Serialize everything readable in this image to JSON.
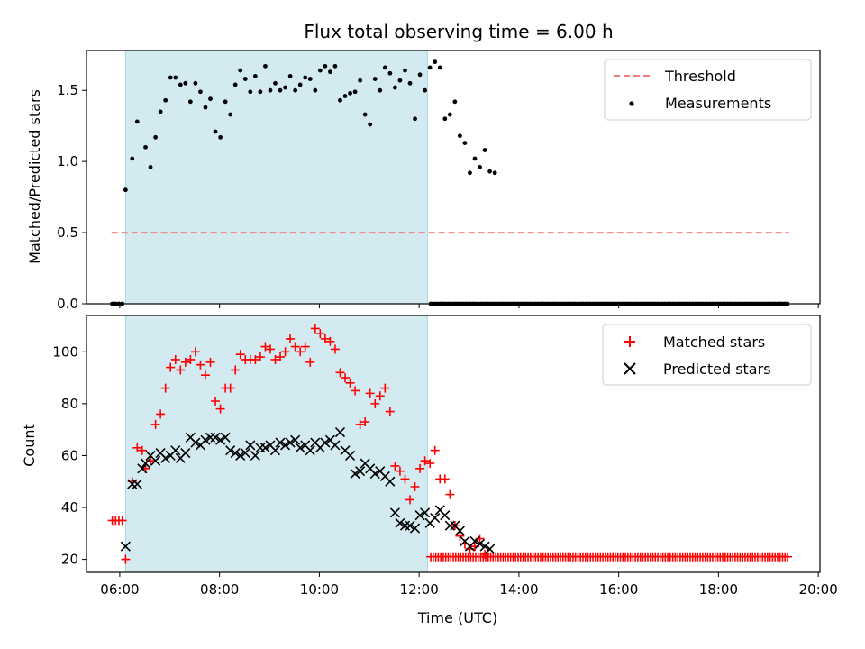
{
  "chart_data": [
    {
      "type": "scatter",
      "title": "Flux total observing time = 6.00 h",
      "xlabel": "",
      "ylabel": "Matched/Predicted stars",
      "ylim": [
        0,
        1.78
      ],
      "xlim": [
        "05:20",
        "20:02"
      ],
      "yticks": [
        0.0,
        0.5,
        1.0,
        1.5
      ],
      "ytick_labels": [
        "0.0",
        "0.5",
        "1.0",
        "1.5"
      ],
      "shaded_span": [
        "06:07",
        "12:10"
      ],
      "shade_color": "#d4eaf1",
      "legend": {
        "placement": "top-right",
        "entries": [
          "Threshold",
          "Measurements"
        ]
      },
      "threshold": {
        "name": "Threshold",
        "y": 0.5,
        "x_range": [
          "05:50",
          "19:25"
        ],
        "color": "#f08080"
      },
      "series": [
        {
          "name": "Measurements",
          "color": "#000000",
          "points": [
            [
              "05:51",
              0.0
            ],
            [
              "05:55",
              0.0
            ],
            [
              "05:59",
              0.0
            ],
            [
              "06:03",
              0.0
            ],
            [
              "06:07",
              0.8
            ],
            [
              "06:15",
              1.02
            ],
            [
              "06:21",
              1.28
            ],
            [
              "06:31",
              1.1
            ],
            [
              "06:37",
              0.96
            ],
            [
              "06:43",
              1.17
            ],
            [
              "06:49",
              1.35
            ],
            [
              "06:55",
              1.43
            ],
            [
              "07:01",
              1.59
            ],
            [
              "07:07",
              1.59
            ],
            [
              "07:13",
              1.54
            ],
            [
              "07:19",
              1.55
            ],
            [
              "07:25",
              1.42
            ],
            [
              "07:31",
              1.55
            ],
            [
              "07:37",
              1.49
            ],
            [
              "07:43",
              1.38
            ],
            [
              "07:49",
              1.44
            ],
            [
              "07:55",
              1.21
            ],
            [
              "08:01",
              1.17
            ],
            [
              "08:07",
              1.42
            ],
            [
              "08:13",
              1.33
            ],
            [
              "08:19",
              1.54
            ],
            [
              "08:25",
              1.64
            ],
            [
              "08:31",
              1.58
            ],
            [
              "08:37",
              1.49
            ],
            [
              "08:43",
              1.6
            ],
            [
              "08:49",
              1.49
            ],
            [
              "08:55",
              1.67
            ],
            [
              "09:01",
              1.5
            ],
            [
              "09:07",
              1.55
            ],
            [
              "09:13",
              1.5
            ],
            [
              "09:19",
              1.52
            ],
            [
              "09:25",
              1.6
            ],
            [
              "09:31",
              1.5
            ],
            [
              "09:37",
              1.54
            ],
            [
              "09:43",
              1.59
            ],
            [
              "09:49",
              1.58
            ],
            [
              "09:55",
              1.5
            ],
            [
              "10:01",
              1.64
            ],
            [
              "10:07",
              1.67
            ],
            [
              "10:13",
              1.63
            ],
            [
              "10:19",
              1.67
            ],
            [
              "10:25",
              1.43
            ],
            [
              "10:31",
              1.46
            ],
            [
              "10:37",
              1.48
            ],
            [
              "10:43",
              1.49
            ],
            [
              "10:49",
              1.57
            ],
            [
              "10:55",
              1.33
            ],
            [
              "11:01",
              1.26
            ],
            [
              "11:07",
              1.58
            ],
            [
              "11:13",
              1.5
            ],
            [
              "11:19",
              1.66
            ],
            [
              "11:25",
              1.62
            ],
            [
              "11:31",
              1.52
            ],
            [
              "11:37",
              1.57
            ],
            [
              "11:43",
              1.64
            ],
            [
              "11:49",
              1.55
            ],
            [
              "11:55",
              1.3
            ],
            [
              "12:01",
              1.61
            ],
            [
              "12:07",
              1.5
            ],
            [
              "12:13",
              1.66
            ],
            [
              "12:19",
              1.7
            ],
            [
              "12:25",
              1.66
            ],
            [
              "12:31",
              1.3
            ],
            [
              "12:37",
              1.33
            ],
            [
              "12:43",
              1.42
            ],
            [
              "12:49",
              1.18
            ],
            [
              "12:55",
              1.13
            ],
            [
              "13:01",
              0.92
            ],
            [
              "13:07",
              1.02
            ],
            [
              "13:13",
              0.96
            ],
            [
              "13:19",
              1.08
            ],
            [
              "13:25",
              0.93
            ],
            [
              "13:31",
              0.92
            ]
          ],
          "zero_run": {
            "from": "12:14",
            "to": "19:24",
            "step_minutes": 3,
            "y": 0.0
          }
        }
      ]
    },
    {
      "type": "scatter",
      "title": "",
      "xlabel": "Time (UTC)",
      "ylabel": "Count",
      "ylim": [
        15,
        114
      ],
      "xlim": [
        "05:20",
        "20:02"
      ],
      "yticks": [
        20,
        40,
        60,
        80,
        100
      ],
      "ytick_labels": [
        "20",
        "40",
        "60",
        "80",
        "100"
      ],
      "xticks": [
        "06:00",
        "08:00",
        "10:00",
        "12:00",
        "14:00",
        "16:00",
        "18:00",
        "20:00"
      ],
      "xtick_labels": [
        "06:00",
        "08:00",
        "10:00",
        "12:00",
        "14:00",
        "16:00",
        "18:00",
        "20:00"
      ],
      "shaded_span": [
        "06:07",
        "12:10"
      ],
      "shade_color": "#d4eaf1",
      "legend": {
        "placement": "top-right",
        "entries": [
          "Matched stars",
          "Predicted stars"
        ]
      },
      "series": [
        {
          "name": "Matched stars",
          "marker": "plus",
          "color": "#ff0000",
          "points": [
            [
              "05:51",
              35
            ],
            [
              "05:55",
              35
            ],
            [
              "05:59",
              35
            ],
            [
              "06:03",
              35
            ],
            [
              "06:07",
              20
            ],
            [
              "06:15",
              50
            ],
            [
              "06:21",
              63
            ],
            [
              "06:27",
              62
            ],
            [
              "06:31",
              55
            ],
            [
              "06:37",
              58
            ],
            [
              "06:43",
              72
            ],
            [
              "06:49",
              76
            ],
            [
              "06:55",
              86
            ],
            [
              "07:01",
              94
            ],
            [
              "07:07",
              97
            ],
            [
              "07:13",
              93
            ],
            [
              "07:19",
              96
            ],
            [
              "07:25",
              97
            ],
            [
              "07:31",
              100
            ],
            [
              "07:37",
              95
            ],
            [
              "07:43",
              91
            ],
            [
              "07:49",
              96
            ],
            [
              "07:55",
              81
            ],
            [
              "08:01",
              78
            ],
            [
              "08:07",
              86
            ],
            [
              "08:13",
              86
            ],
            [
              "08:19",
              93
            ],
            [
              "08:25",
              99
            ],
            [
              "08:31",
              97
            ],
            [
              "08:37",
              97
            ],
            [
              "08:43",
              97
            ],
            [
              "08:49",
              98
            ],
            [
              "08:55",
              102
            ],
            [
              "09:01",
              101
            ],
            [
              "09:07",
              97
            ],
            [
              "09:13",
              98
            ],
            [
              "09:19",
              100
            ],
            [
              "09:25",
              105
            ],
            [
              "09:31",
              102
            ],
            [
              "09:37",
              100
            ],
            [
              "09:43",
              102
            ],
            [
              "09:49",
              96
            ],
            [
              "09:55",
              109
            ],
            [
              "10:01",
              107
            ],
            [
              "10:07",
              105
            ],
            [
              "10:13",
              104
            ],
            [
              "10:19",
              101
            ],
            [
              "10:25",
              92
            ],
            [
              "10:31",
              90
            ],
            [
              "10:37",
              88
            ],
            [
              "10:43",
              85
            ],
            [
              "10:49",
              72
            ],
            [
              "10:55",
              73
            ],
            [
              "11:01",
              84
            ],
            [
              "11:07",
              80
            ],
            [
              "11:13",
              83
            ],
            [
              "11:19",
              86
            ],
            [
              "11:25",
              77
            ],
            [
              "11:31",
              56
            ],
            [
              "11:37",
              54
            ],
            [
              "11:43",
              51
            ],
            [
              "11:49",
              43
            ],
            [
              "11:55",
              48
            ],
            [
              "12:01",
              55
            ],
            [
              "12:07",
              58
            ],
            [
              "12:13",
              57
            ],
            [
              "12:19",
              62
            ],
            [
              "12:25",
              51
            ],
            [
              "12:31",
              51
            ],
            [
              "12:37",
              45
            ],
            [
              "12:43",
              33
            ],
            [
              "12:49",
              29
            ],
            [
              "12:55",
              26
            ],
            [
              "13:01",
              24
            ],
            [
              "13:07",
              25
            ],
            [
              "13:13",
              28
            ],
            [
              "13:19",
              22
            ]
          ],
          "constant_run": {
            "from": "12:14",
            "to": "19:24",
            "step_minutes": 3,
            "y": 21
          }
        },
        {
          "name": "Predicted stars",
          "marker": "x",
          "color": "#000000",
          "points": [
            [
              "06:07",
              25
            ],
            [
              "06:15",
              49
            ],
            [
              "06:21",
              49
            ],
            [
              "06:27",
              55
            ],
            [
              "06:31",
              57
            ],
            [
              "06:37",
              60
            ],
            [
              "06:43",
              58
            ],
            [
              "06:49",
              61
            ],
            [
              "06:55",
              59
            ],
            [
              "07:01",
              60
            ],
            [
              "07:07",
              62
            ],
            [
              "07:13",
              59
            ],
            [
              "07:19",
              61
            ],
            [
              "07:25",
              67
            ],
            [
              "07:31",
              65
            ],
            [
              "07:37",
              64
            ],
            [
              "07:43",
              66
            ],
            [
              "07:49",
              67
            ],
            [
              "07:55",
              67
            ],
            [
              "08:01",
              66
            ],
            [
              "08:07",
              67
            ],
            [
              "08:13",
              62
            ],
            [
              "08:19",
              61
            ],
            [
              "08:25",
              60
            ],
            [
              "08:31",
              61
            ],
            [
              "08:37",
              64
            ],
            [
              "08:43",
              60
            ],
            [
              "08:49",
              63
            ],
            [
              "08:55",
              63
            ],
            [
              "09:01",
              64
            ],
            [
              "09:07",
              62
            ],
            [
              "09:13",
              65
            ],
            [
              "09:19",
              64
            ],
            [
              "09:25",
              65
            ],
            [
              "09:31",
              66
            ],
            [
              "09:37",
              63
            ],
            [
              "09:43",
              64
            ],
            [
              "09:49",
              62
            ],
            [
              "09:55",
              65
            ],
            [
              "10:01",
              63
            ],
            [
              "10:07",
              65
            ],
            [
              "10:13",
              66
            ],
            [
              "10:19",
              64
            ],
            [
              "10:25",
              69
            ],
            [
              "10:31",
              62
            ],
            [
              "10:37",
              60
            ],
            [
              "10:43",
              53
            ],
            [
              "10:49",
              54
            ],
            [
              "10:55",
              57
            ],
            [
              "11:01",
              55
            ],
            [
              "11:07",
              53
            ],
            [
              "11:13",
              54
            ],
            [
              "11:19",
              52
            ],
            [
              "11:25",
              50
            ],
            [
              "11:31",
              38
            ],
            [
              "11:37",
              34
            ],
            [
              "11:43",
              33
            ],
            [
              "11:49",
              33
            ],
            [
              "11:55",
              32
            ],
            [
              "12:01",
              37
            ],
            [
              "12:07",
              38
            ],
            [
              "12:13",
              34
            ],
            [
              "12:19",
              36
            ],
            [
              "12:25",
              39
            ],
            [
              "12:31",
              37
            ],
            [
              "12:37",
              33
            ],
            [
              "12:43",
              33
            ],
            [
              "12:49",
              31
            ],
            [
              "12:55",
              27
            ],
            [
              "13:01",
              25
            ],
            [
              "13:07",
              27
            ],
            [
              "13:13",
              26
            ],
            [
              "13:19",
              25
            ],
            [
              "13:25",
              24
            ]
          ]
        }
      ]
    }
  ]
}
